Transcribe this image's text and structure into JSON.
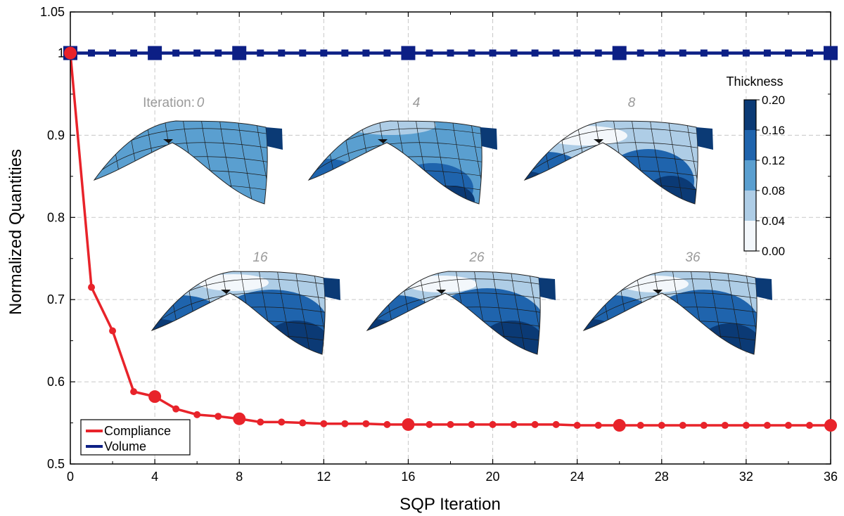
{
  "chart_data": {
    "type": "line",
    "xlabel": "SQP Iteration",
    "ylabel": "Normalized Quantities",
    "xlim": [
      0,
      36
    ],
    "ylim": [
      0.5,
      1.05
    ],
    "xticks": [
      0,
      4,
      8,
      12,
      16,
      20,
      24,
      28,
      32,
      36
    ],
    "yticks": [
      0.5,
      0.6,
      0.7,
      0.8,
      0.9,
      1,
      1.05
    ],
    "ytick_labels": [
      "0.5",
      "0.6",
      "0.7",
      "0.8",
      "0.9",
      "1",
      "1.05"
    ],
    "grid": true,
    "legend_position": "bottom-left",
    "x": [
      0,
      1,
      2,
      3,
      4,
      5,
      6,
      7,
      8,
      9,
      10,
      11,
      12,
      13,
      14,
      15,
      16,
      17,
      18,
      19,
      20,
      21,
      22,
      23,
      24,
      25,
      26,
      27,
      28,
      29,
      30,
      31,
      32,
      33,
      34,
      35,
      36
    ],
    "highlight_x": [
      0,
      4,
      8,
      16,
      26,
      36
    ],
    "series": [
      {
        "name": "Compliance",
        "color": "#e8232a",
        "marker": "circle",
        "values": [
          1.0,
          0.715,
          0.662,
          0.588,
          0.582,
          0.567,
          0.56,
          0.558,
          0.555,
          0.551,
          0.551,
          0.55,
          0.549,
          0.549,
          0.549,
          0.548,
          0.548,
          0.548,
          0.548,
          0.548,
          0.548,
          0.548,
          0.548,
          0.548,
          0.547,
          0.547,
          0.547,
          0.547,
          0.547,
          0.547,
          0.547,
          0.547,
          0.547,
          0.547,
          0.547,
          0.547,
          0.547
        ]
      },
      {
        "name": "Volume",
        "color": "#0c1f85",
        "marker": "square",
        "values": [
          1,
          1,
          1,
          1,
          1,
          1,
          1,
          1,
          1,
          1,
          1,
          1,
          1,
          1,
          1,
          1,
          1,
          1,
          1,
          1,
          1,
          1,
          1,
          1,
          1,
          1,
          1,
          1,
          1,
          1,
          1,
          1,
          1,
          1,
          1,
          1,
          1
        ]
      }
    ],
    "insets": {
      "prefix": "Iteration:",
      "labels": [
        "0",
        "4",
        "8",
        "16",
        "26",
        "36"
      ]
    },
    "colorbar": {
      "title": "Thickness",
      "ticks": [
        "0.20",
        "0.16",
        "0.12",
        "0.08",
        "0.04",
        "0.00"
      ],
      "colors": [
        "#0b3a75",
        "#1f64ad",
        "#5a9fd0",
        "#aecde6",
        "#f3f7fb"
      ]
    }
  }
}
